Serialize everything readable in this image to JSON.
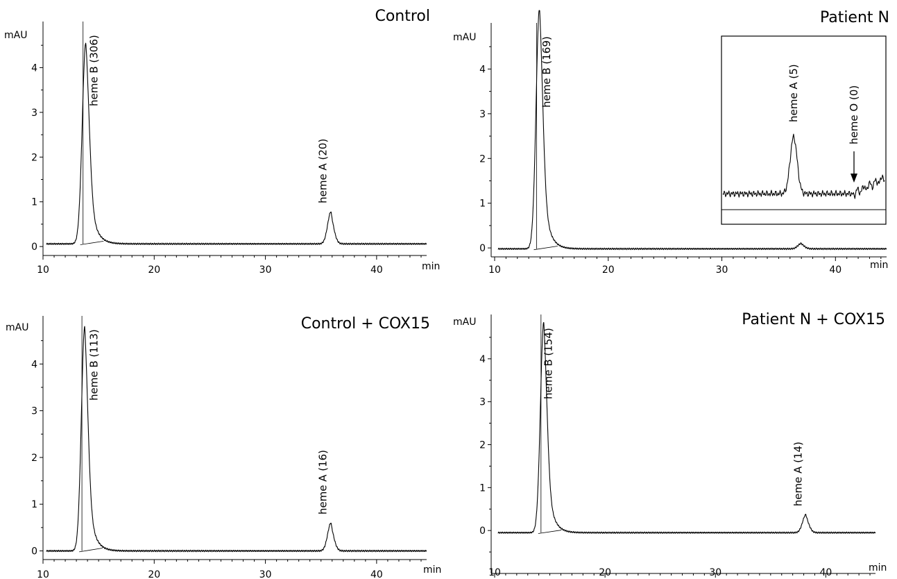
{
  "figure": {
    "y_unit": "mAU",
    "x_unit": "min"
  },
  "chart_data": [
    {
      "type": "line",
      "title": "Control",
      "ylabel": "mAU",
      "xlabel": "min",
      "xlim": [
        10,
        44.5
      ],
      "ylim": [
        -0.2,
        5.0
      ],
      "x_ticks": [
        10,
        20,
        30,
        40
      ],
      "y_ticks": [
        0,
        1,
        2,
        3,
        4
      ],
      "baseline": 0.06,
      "peaks": [
        {
          "center": 13.85,
          "height": 4.5,
          "width": 0.32,
          "tail": 0.9,
          "clipped": true
        },
        {
          "center": 35.9,
          "height": 0.72,
          "width": 0.3,
          "tail": 0.3
        }
      ],
      "annotations": [
        {
          "text": "heme B  (306)",
          "x": 14.9
        },
        {
          "text": "heme A  (20)",
          "x": 35.5
        }
      ]
    },
    {
      "type": "line",
      "title": "Patient N",
      "ylabel": "mAU",
      "xlabel": "min",
      "xlim": [
        10,
        44.5
      ],
      "ylim": [
        -0.2,
        5.0
      ],
      "x_ticks": [
        10,
        20,
        30,
        40
      ],
      "y_ticks": [
        0,
        1,
        2,
        3,
        4
      ],
      "baseline": -0.02,
      "peaks": [
        {
          "center": 13.95,
          "height": 5.4,
          "width": 0.3,
          "tail": 0.85,
          "clipped": true
        },
        {
          "center": 37.0,
          "height": 0.12,
          "width": 0.3,
          "tail": 0.3
        }
      ],
      "annotations": [
        {
          "text": "heme B  (169)",
          "x": 14.9
        }
      ],
      "inset": {
        "annotations": [
          {
            "text": "heme A  (5)"
          },
          {
            "text": "heme O (0)"
          }
        ]
      }
    },
    {
      "type": "line",
      "title": "Control + COX15",
      "ylabel": "mAU",
      "xlabel": "min",
      "xlim": [
        10,
        44.5
      ],
      "ylim": [
        -0.2,
        5.0
      ],
      "x_ticks": [
        10,
        20,
        30,
        40
      ],
      "y_ticks": [
        0,
        1,
        2,
        3,
        4
      ],
      "baseline": 0.0,
      "peaks": [
        {
          "center": 13.75,
          "height": 4.8,
          "width": 0.3,
          "tail": 0.85,
          "clipped": true
        },
        {
          "center": 35.9,
          "height": 0.6,
          "width": 0.3,
          "tail": 0.3
        }
      ],
      "annotations": [
        {
          "text": "heme B  (113)",
          "x": 14.9
        },
        {
          "text": "heme A  (16)",
          "x": 35.5
        }
      ]
    },
    {
      "type": "line",
      "title": "Patient N + COX15",
      "ylabel": "mAU",
      "xlabel": "min",
      "xlim": [
        10,
        44.5
      ],
      "ylim": [
        -1.0,
        5.0
      ],
      "x_ticks": [
        10,
        20,
        30,
        40
      ],
      "y_ticks": [
        0,
        1,
        2,
        3,
        4
      ],
      "baseline": -0.05,
      "peaks": [
        {
          "center": 14.45,
          "height": 4.9,
          "width": 0.3,
          "tail": 0.85,
          "clipped": true
        },
        {
          "center": 38.2,
          "height": 0.42,
          "width": 0.3,
          "tail": 0.3
        }
      ],
      "annotations": [
        {
          "text": "heme B  (154)",
          "x": 15.2
        },
        {
          "text": "heme A  (14)",
          "x": 37.8
        }
      ]
    }
  ]
}
